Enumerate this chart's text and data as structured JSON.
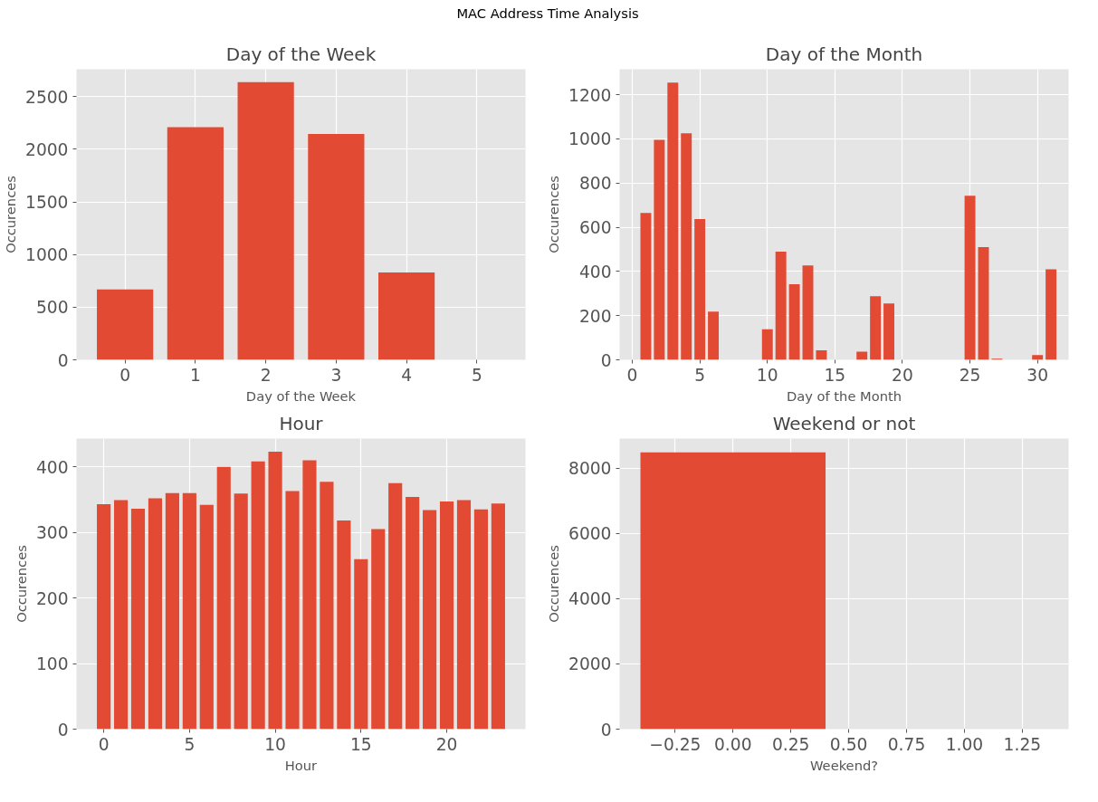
{
  "chart_data": [
    {
      "type": "bar",
      "title": "Day of the Week",
      "xlabel": "Day of the Week",
      "ylabel": "Occurences",
      "annotations": [
        "MAC Address Time Analysis"
      ],
      "x": [
        0,
        1,
        2,
        3,
        4
      ],
      "values": [
        668,
        2209,
        2637,
        2146,
        829
      ],
      "color": "#e24a33",
      "xlim": [
        -0.69,
        5.69
      ],
      "ylim": [
        0,
        2760
      ],
      "xticks": [
        0,
        1,
        2,
        3,
        4,
        5
      ],
      "yticks": [
        0,
        500,
        1000,
        1500,
        2000,
        2500
      ],
      "grid": true
    },
    {
      "type": "bar",
      "title": "Day of the Month",
      "xlabel": "Day of the Month",
      "ylabel": "Occurences",
      "x": [
        1,
        2,
        3,
        4,
        5,
        6,
        10,
        11,
        12,
        13,
        14,
        17,
        18,
        19,
        25,
        26,
        27,
        30,
        31
      ],
      "values": [
        665,
        995,
        1255,
        1025,
        637,
        218,
        138,
        490,
        342,
        427,
        43,
        37,
        288,
        255,
        742,
        510,
        5,
        22,
        410
      ],
      "color": "#e24a33",
      "xlim": [
        -0.94,
        32.3
      ],
      "ylim": [
        0,
        1315
      ],
      "xticks": [
        0,
        5,
        10,
        15,
        20,
        25,
        30
      ],
      "yticks": [
        0,
        200,
        400,
        600,
        800,
        1000,
        1200
      ],
      "grid": true
    },
    {
      "type": "bar",
      "title": "Hour",
      "xlabel": "Hour",
      "ylabel": "Occurences",
      "x": [
        0,
        1,
        2,
        3,
        4,
        5,
        6,
        7,
        8,
        9,
        10,
        11,
        12,
        13,
        14,
        15,
        16,
        17,
        18,
        19,
        20,
        21,
        22,
        23
      ],
      "values": [
        343,
        349,
        336,
        352,
        360,
        360,
        342,
        400,
        359,
        408,
        423,
        363,
        410,
        377,
        318,
        259,
        305,
        375,
        354,
        334,
        347,
        349,
        335,
        344
      ],
      "color": "#e24a33",
      "xlim": [
        -1.59,
        24.59
      ],
      "ylim": [
        0,
        443
      ],
      "xticks": [
        0,
        5,
        10,
        15,
        20
      ],
      "yticks": [
        0,
        100,
        200,
        300,
        400
      ],
      "grid": true
    },
    {
      "type": "bar",
      "title": "Weekend or not",
      "xlabel": "Weekend?",
      "ylabel": "Occurences",
      "x": [
        0
      ],
      "values": [
        8490
      ],
      "color": "#e24a33",
      "xlim": [
        -0.49,
        1.45
      ],
      "ylim": [
        0,
        8915
      ],
      "xticks": [
        {
          "value": -0.25,
          "label": "−0.25"
        },
        {
          "value": 0,
          "label": "0.00"
        },
        {
          "value": 0.25,
          "label": "0.25"
        },
        {
          "value": 0.5,
          "label": "0.50"
        },
        {
          "value": 0.75,
          "label": "0.75"
        },
        {
          "value": 1,
          "label": "1.00"
        },
        {
          "value": 1.25,
          "label": "1.25"
        }
      ],
      "yticks": [
        0,
        2000,
        4000,
        6000,
        8000
      ],
      "grid": true
    }
  ]
}
